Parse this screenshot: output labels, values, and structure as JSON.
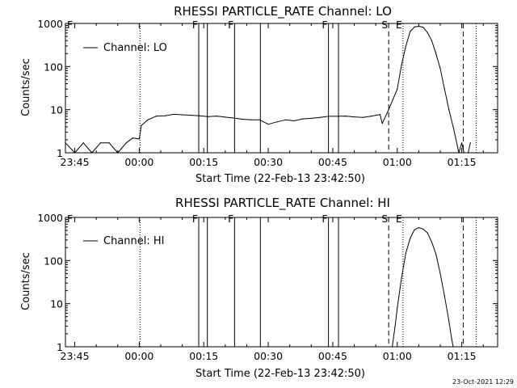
{
  "footer": {
    "stamp": "23-Oct-2021 12:29"
  },
  "chart_data": [
    {
      "type": "line",
      "title": "RHESSI PARTICLE_RATE Channel: LO",
      "xlabel": "Start Time (22-Feb-13 23:42:50)",
      "ylabel": "Counts/sec",
      "y_scale": "log",
      "ylim": [
        1,
        1000
      ],
      "xlim": [
        "23:42:50",
        "01:23:20"
      ],
      "x_ticks": [
        "23:45",
        "00:00",
        "00:15",
        "00:30",
        "00:45",
        "01:00",
        "01:15"
      ],
      "y_ticks": [
        "1",
        "10",
        "100",
        "1000"
      ],
      "legend": {
        "position": "top-left",
        "entries": [
          "Channel: LO"
        ]
      },
      "markers": [
        {
          "time": "00:00:10",
          "style": "dotted"
        },
        {
          "time": "00:13:50",
          "style": "solid",
          "label": "F"
        },
        {
          "time": "00:15:50",
          "style": "solid"
        },
        {
          "time": "00:22:10",
          "style": "solid",
          "label": "F"
        },
        {
          "time": "00:28:10",
          "style": "solid"
        },
        {
          "time": "00:44:00",
          "style": "solid",
          "label": "F"
        },
        {
          "time": "00:46:20",
          "style": "solid"
        },
        {
          "time": "00:58:00",
          "style": "dashed",
          "label": "S"
        },
        {
          "time": "01:01:20",
          "style": "dotted",
          "label": "E"
        },
        {
          "time": "01:15:20",
          "style": "dashed"
        },
        {
          "time": "01:18:20",
          "style": "dotted"
        }
      ],
      "series": [
        {
          "name": "Channel: LO",
          "x": [
            "23:42:50",
            "23:45:00",
            "23:47:00",
            "23:49:00",
            "23:51:00",
            "23:53:00",
            "23:55:00",
            "23:57:00",
            "23:58:30",
            "00:00:00",
            "00:00:30",
            "00:02:00",
            "00:04:00",
            "00:06:00",
            "00:08:00",
            "00:10:00",
            "00:12:00",
            "00:14:00",
            "00:16:00",
            "00:18:00",
            "00:20:00",
            "00:22:00",
            "00:24:00",
            "00:26:00",
            "00:28:00",
            "00:30:00",
            "00:32:00",
            "00:34:00",
            "00:36:00",
            "00:38:00",
            "00:40:00",
            "00:42:00",
            "00:44:00",
            "00:46:00",
            "00:48:00",
            "00:50:00",
            "00:52:00",
            "00:54:00",
            "00:56:00",
            "00:56:30",
            "00:58:00",
            "01:00:00",
            "01:01:00",
            "01:02:00",
            "01:03:00",
            "01:04:00",
            "01:05:00",
            "01:06:00",
            "01:07:00",
            "01:08:00",
            "01:09:00",
            "01:10:00",
            "01:11:00",
            "01:12:00",
            "01:13:00",
            "01:13:40",
            "01:14:20",
            "01:15:00",
            "01:15:30",
            "01:16:30",
            "01:17:00"
          ],
          "y": [
            1.7,
            1.0,
            1.7,
            1.0,
            1.7,
            1.7,
            1.0,
            1.7,
            2.2,
            2.1,
            4.3,
            5.8,
            7.1,
            7.2,
            7.8,
            7.6,
            7.4,
            7.2,
            6.9,
            7.1,
            6.7,
            6.4,
            6.0,
            5.8,
            5.8,
            4.6,
            5.2,
            5.8,
            5.5,
            6.1,
            6.3,
            6.6,
            7.0,
            7.0,
            7.1,
            6.8,
            6.6,
            7.1,
            7.7,
            4.8,
            10,
            30,
            110,
            300,
            650,
            830,
            860,
            820,
            620,
            400,
            200,
            90,
            30,
            10,
            4,
            2,
            1,
            1.7,
            1.0,
            1.0,
            1.7
          ]
        }
      ]
    },
    {
      "type": "line",
      "title": "RHESSI PARTICLE_RATE Channel: HI",
      "xlabel": "Start Time (22-Feb-13 23:42:50)",
      "ylabel": "Counts/sec",
      "y_scale": "log",
      "ylim": [
        1,
        1000
      ],
      "xlim": [
        "23:42:50",
        "01:23:20"
      ],
      "x_ticks": [
        "23:45",
        "00:00",
        "00:15",
        "00:30",
        "00:45",
        "01:00",
        "01:15"
      ],
      "y_ticks": [
        "1",
        "10",
        "100",
        "1000"
      ],
      "legend": {
        "position": "top-left",
        "entries": [
          "Channel: HI"
        ]
      },
      "markers": [
        {
          "time": "00:00:10",
          "style": "dotted"
        },
        {
          "time": "00:13:50",
          "style": "solid",
          "label": "F"
        },
        {
          "time": "00:15:50",
          "style": "solid"
        },
        {
          "time": "00:22:10",
          "style": "solid",
          "label": "F"
        },
        {
          "time": "00:28:10",
          "style": "solid"
        },
        {
          "time": "00:44:00",
          "style": "solid",
          "label": "F"
        },
        {
          "time": "00:46:20",
          "style": "solid"
        },
        {
          "time": "00:58:00",
          "style": "dashed",
          "label": "S"
        },
        {
          "time": "01:01:20",
          "style": "dotted",
          "label": "E"
        },
        {
          "time": "01:15:20",
          "style": "dashed"
        },
        {
          "time": "01:18:20",
          "style": "dotted"
        }
      ],
      "series": [
        {
          "name": "Channel: HI",
          "x": [
            "00:58:50",
            "00:59:30",
            "01:00:00",
            "01:01:00",
            "01:02:00",
            "01:03:00",
            "01:04:00",
            "01:05:00",
            "01:06:00",
            "01:07:00",
            "01:08:00",
            "01:09:00",
            "01:10:00",
            "01:11:00",
            "01:12:00",
            "01:12:40",
            "01:13:00"
          ],
          "y": [
            1,
            3,
            8,
            40,
            150,
            330,
            520,
            580,
            540,
            440,
            270,
            140,
            50,
            15,
            4,
            1.5,
            1
          ]
        }
      ]
    }
  ]
}
